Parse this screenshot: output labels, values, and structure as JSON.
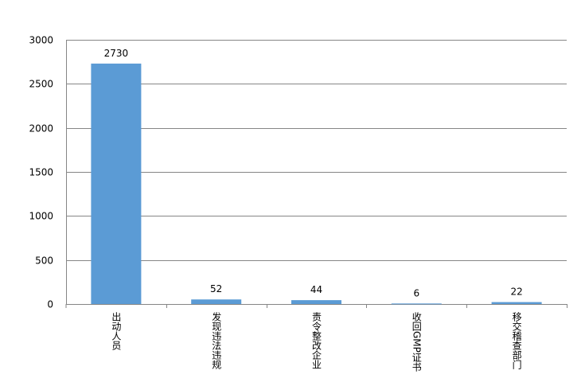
{
  "chart_data": {
    "type": "bar",
    "title": "",
    "xlabel": "",
    "ylabel": "",
    "categories": [
      "出动人员",
      "发现违法违规",
      "责令整改企业",
      "收回GMP证书",
      "移交稽查部门"
    ],
    "values": [
      2730,
      52,
      44,
      6,
      22
    ],
    "ylim": [
      0,
      3000
    ],
    "yticks": [
      0,
      500,
      1000,
      1500,
      2000,
      2500,
      3000
    ],
    "grid": true,
    "legend": "none",
    "bar_color": "#5B9BD5",
    "data_labels": true
  }
}
